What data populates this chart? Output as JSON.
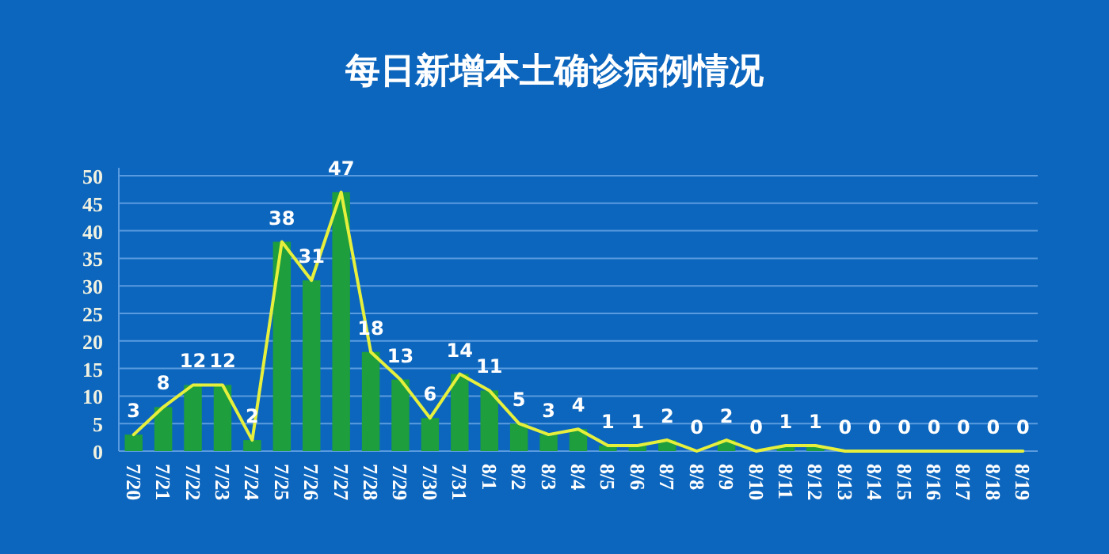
{
  "chart_data": {
    "type": "bar",
    "title": "每日新增本土确诊病例情况",
    "categories": [
      "7/20",
      "7/21",
      "7/22",
      "7/23",
      "7/24",
      "7/25",
      "7/26",
      "7/27",
      "7/28",
      "7/29",
      "7/30",
      "7/31",
      "8/1",
      "8/2",
      "8/3",
      "8/4",
      "8/5",
      "8/6",
      "8/7",
      "8/8",
      "8/9",
      "8/10",
      "8/11",
      "8/12",
      "8/13",
      "8/14",
      "8/15",
      "8/16",
      "8/17",
      "8/18",
      "8/19"
    ],
    "series": [
      {
        "color": "#1e9e3c",
        "values": [
          3,
          8,
          12,
          12,
          2,
          38,
          31,
          47,
          18,
          13,
          6,
          14,
          11,
          5,
          3,
          4,
          1,
          1,
          2,
          0,
          2,
          0,
          1,
          1,
          0,
          0,
          0,
          0,
          0,
          0,
          0
        ],
        "value_labels": [
          "3",
          "8",
          "12",
          "12",
          "2",
          "38",
          "31",
          "47",
          "18",
          "13",
          "6",
          "14",
          "11",
          "5",
          "3",
          "4",
          "1",
          "1",
          "2",
          "0",
          "2",
          "0",
          "1",
          "1",
          "0",
          "0",
          "0",
          "0",
          "0",
          "0",
          "0"
        ]
      },
      {
        "type": "line",
        "color": "#e6f03c",
        "values": [
          3,
          8,
          12,
          12,
          2,
          38,
          31,
          47,
          18,
          13,
          6,
          14,
          11,
          5,
          3,
          4,
          1,
          1,
          2,
          0,
          2,
          0,
          1,
          1,
          0,
          0,
          0,
          0,
          0,
          0,
          0
        ]
      }
    ],
    "ylim": [
      0,
      50
    ],
    "yticks": [
      0,
      5,
      10,
      15,
      20,
      25,
      30,
      35,
      40,
      45,
      50
    ],
    "grid": "y",
    "marker": "none"
  }
}
